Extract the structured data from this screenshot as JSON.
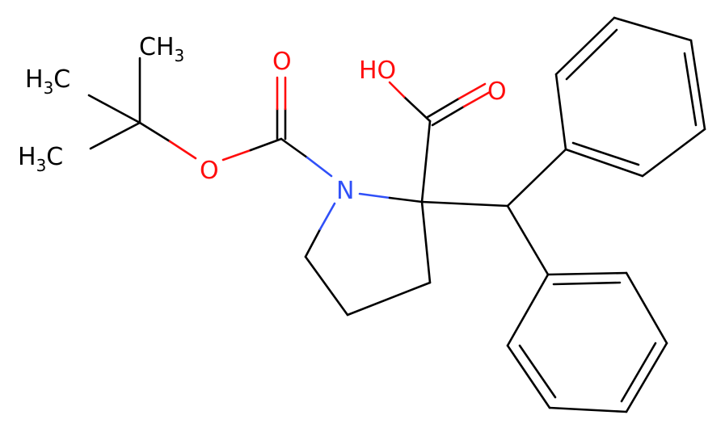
{
  "nodes": [
    {
      "label": {
        "text": "H",
        "sub": "3",
        "tail": "C"
      }
    },
    {
      "label": {
        "text": "CH",
        "sub": "3"
      }
    },
    {
      "label": {
        "text": "H",
        "sub": "3",
        "tail": "C"
      }
    },
    {
      "label": {
        "text": "O"
      }
    },
    {
      "label": {
        "text": "O"
      }
    },
    {
      "label": {
        "text": "N"
      }
    },
    {
      "label": {
        "text": "HO"
      }
    },
    {
      "label": {
        "text": "O"
      }
    }
  ]
}
